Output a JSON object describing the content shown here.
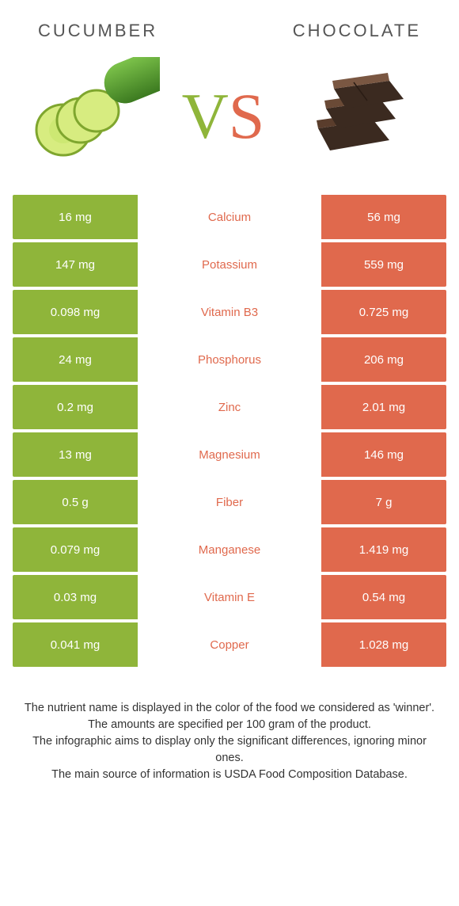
{
  "colors": {
    "left": "#8fb53a",
    "right": "#e0694d",
    "text_dark": "#444444"
  },
  "header": {
    "left_title": "CUCUMBER",
    "right_title": "CHOCOLATE",
    "vs_v": "V",
    "vs_s": "S"
  },
  "rows": [
    {
      "left": "16 mg",
      "label": "Calcium",
      "right": "56 mg",
      "winner": "right"
    },
    {
      "left": "147 mg",
      "label": "Potassium",
      "right": "559 mg",
      "winner": "right"
    },
    {
      "left": "0.098 mg",
      "label": "Vitamin B3",
      "right": "0.725 mg",
      "winner": "right"
    },
    {
      "left": "24 mg",
      "label": "Phosphorus",
      "right": "206 mg",
      "winner": "right"
    },
    {
      "left": "0.2 mg",
      "label": "Zinc",
      "right": "2.01 mg",
      "winner": "right"
    },
    {
      "left": "13 mg",
      "label": "Magnesium",
      "right": "146 mg",
      "winner": "right"
    },
    {
      "left": "0.5 g",
      "label": "Fiber",
      "right": "7 g",
      "winner": "right"
    },
    {
      "left": "0.079 mg",
      "label": "Manganese",
      "right": "1.419 mg",
      "winner": "right"
    },
    {
      "left": "0.03 mg",
      "label": "Vitamin E",
      "right": "0.54 mg",
      "winner": "right"
    },
    {
      "left": "0.041 mg",
      "label": "Copper",
      "right": "1.028 mg",
      "winner": "right"
    }
  ],
  "footer": {
    "line1": "The nutrient name is displayed in the color of the food we considered as 'winner'.",
    "line2": "The amounts are specified per 100 gram of the product.",
    "line3": "The infographic aims to display only the significant differences, ignoring minor ones.",
    "line4": "The main source of information is USDA Food Composition Database."
  }
}
